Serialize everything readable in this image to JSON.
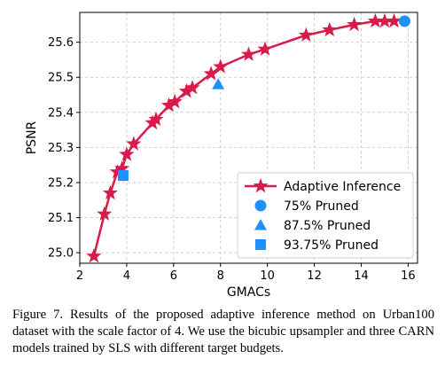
{
  "chart_data": {
    "type": "line",
    "xlabel": "GMACs",
    "ylabel": "PSNR",
    "xlim": [
      2.0,
      16.4
    ],
    "ylim": [
      24.97,
      25.685
    ],
    "xticks": [
      2,
      4,
      6,
      8,
      10,
      12,
      14,
      16
    ],
    "yticks": [
      25.0,
      25.1,
      25.2,
      25.3,
      25.4,
      25.5,
      25.6
    ],
    "grid": true,
    "legend_position": "lower-right",
    "series": [
      {
        "name": "Adaptive Inference",
        "marker": "star",
        "color": "#d81b4a",
        "points": [
          [
            2.6,
            24.99
          ],
          [
            3.05,
            25.11
          ],
          [
            3.3,
            25.17
          ],
          [
            3.6,
            25.23
          ],
          [
            3.8,
            25.24
          ],
          [
            4.0,
            25.28
          ],
          [
            4.3,
            25.31
          ],
          [
            5.1,
            25.37
          ],
          [
            5.25,
            25.38
          ],
          [
            5.8,
            25.42
          ],
          [
            6.05,
            25.43
          ],
          [
            6.55,
            25.46
          ],
          [
            6.8,
            25.47
          ],
          [
            7.6,
            25.51
          ],
          [
            8.0,
            25.53
          ],
          [
            9.2,
            25.565
          ],
          [
            9.9,
            25.58
          ],
          [
            11.65,
            25.62
          ],
          [
            12.65,
            25.635
          ],
          [
            13.7,
            25.65
          ],
          [
            14.6,
            25.66
          ],
          [
            15.0,
            25.66
          ],
          [
            15.4,
            25.66
          ]
        ]
      },
      {
        "name": "75% Pruned",
        "marker": "circle",
        "color": "#1e90ff",
        "points": [
          [
            15.85,
            25.66
          ]
        ]
      },
      {
        "name": "87.5% Pruned",
        "marker": "triangle",
        "color": "#1e90ff",
        "points": [
          [
            7.9,
            25.48
          ]
        ]
      },
      {
        "name": "93.75% Pruned",
        "marker": "square",
        "color": "#1e90ff",
        "points": [
          [
            3.85,
            25.22
          ]
        ]
      }
    ]
  },
  "caption": "Figure 7. Results of the proposed adaptive inference method on Urban100 dataset with the scale factor of 4. We use the bicubic upsampler and three CARN models trained by SLS with different target budgets."
}
